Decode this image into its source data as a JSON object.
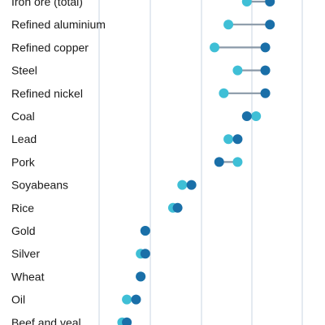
{
  "chart_data": {
    "type": "dot-range",
    "categories": [
      "Iron ore (total)",
      "Refined aluminium",
      "Refined copper",
      "Steel",
      "Refined nickel",
      "Coal",
      "Lead",
      "Pork",
      "Soyabeans",
      "Rice",
      "Gold",
      "Silver",
      "Wheat",
      "Oil",
      "Beef and veal"
    ],
    "series": [
      {
        "color": "#3fbfd6",
        "values": [
          52,
          48,
          45,
          50,
          47,
          54,
          48,
          50,
          38,
          36,
          30,
          29,
          29,
          26,
          25
        ]
      },
      {
        "color": "#1a6fa8",
        "values": [
          57,
          57,
          56,
          56,
          56,
          52,
          50,
          46,
          40,
          37,
          30,
          30,
          29,
          28,
          26
        ]
      }
    ],
    "x_range": [
      20,
      64
    ],
    "grid": true
  }
}
